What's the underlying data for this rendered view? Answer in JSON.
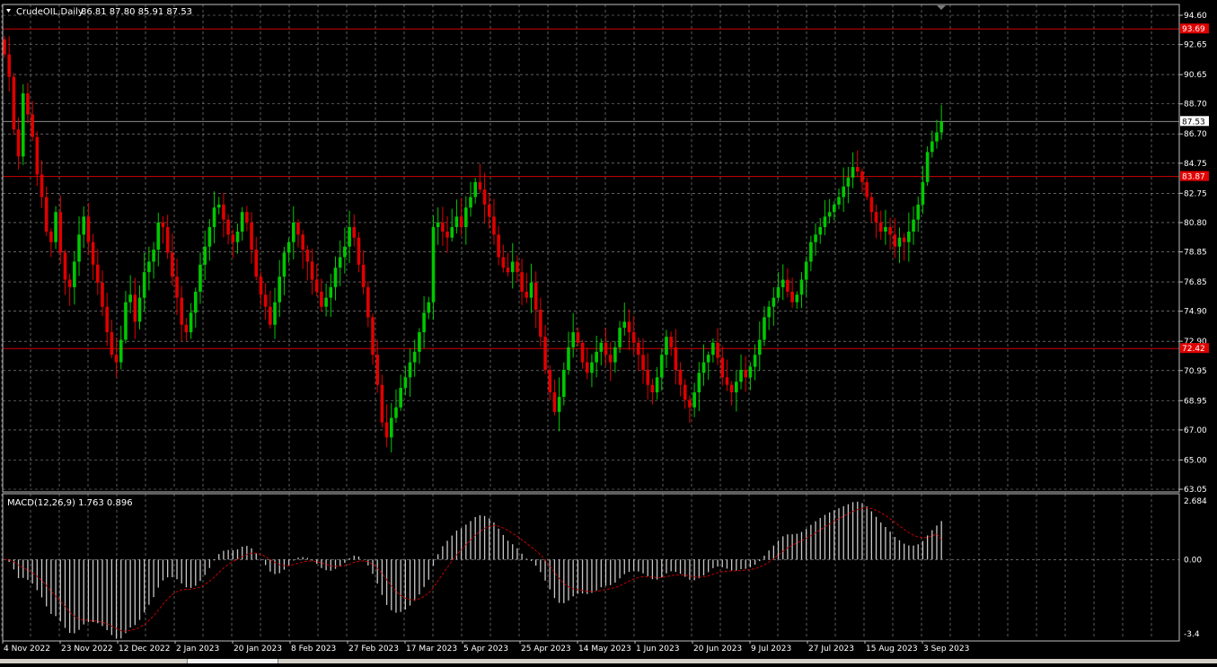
{
  "header": {
    "symbol_title": "CrudeOIL,Daily",
    "ohlc_text": "86.81 87.80 85.91 87.53"
  },
  "indicator": {
    "label": "MACD(12,26,9) 1.763 0.896"
  },
  "colors": {
    "background": "#000000",
    "grid": "#9a9a9a",
    "bull_candle": "#00c800",
    "bear_candle": "#e00000",
    "level_line": "#d00000",
    "level_label_bg": "#e00000",
    "price_line": "#a0a0a0",
    "macd_hist": "#c8c8c8",
    "signal_line": "#c80000",
    "axis_text": "#ffffff"
  },
  "chart_data": [
    {
      "type": "candlestick",
      "price_axis_ticks": [
        "94.60",
        "92.65",
        "90.65",
        "88.70",
        "86.70",
        "84.75",
        "82.75",
        "80.80",
        "78.85",
        "76.85",
        "74.90",
        "72.90",
        "70.95",
        "68.95",
        "67.00",
        "65.00",
        "63.05"
      ],
      "ylim": [
        63.05,
        94.6
      ],
      "date_labels": [
        "4 Nov 2022",
        "23 Nov 2022",
        "12 Dec 2022",
        "2 Jan 2023",
        "20 Jan 2023",
        "8 Feb 2023",
        "27 Feb 2023",
        "17 Mar 2023",
        "5 Apr 2023",
        "25 Apr 2023",
        "14 May 2023",
        "1 Jun 2023",
        "20 Jun 2023",
        "9 Jul 2023",
        "27 Jul 2023",
        "15 Aug 2023",
        "3 Sep 2023"
      ],
      "horizontal_levels": [
        {
          "value": 93.69,
          "label": "93.69"
        },
        {
          "value": 83.87,
          "label": "83.87"
        },
        {
          "value": 72.42,
          "label": "72.42"
        }
      ],
      "current_price": {
        "value": 87.53,
        "label": "87.53"
      },
      "closes": [
        92.0,
        90.5,
        87.0,
        85.2,
        89.4,
        88.0,
        86.5,
        84.0,
        82.5,
        80.2,
        79.5,
        81.5,
        78.8,
        77.0,
        76.5,
        78.2,
        80.0,
        81.2,
        79.5,
        78.0,
        76.8,
        75.2,
        73.5,
        72.0,
        71.5,
        73.0,
        75.5,
        76.0,
        74.2,
        75.8,
        77.5,
        78.2,
        79.0,
        80.8,
        80.5,
        78.8,
        77.2,
        75.8,
        74.0,
        73.5,
        74.8,
        76.2,
        78.0,
        79.2,
        80.5,
        81.8,
        82.0,
        81.0,
        80.0,
        79.5,
        80.2,
        81.5,
        80.8,
        79.0,
        77.2,
        76.0,
        75.2,
        74.0,
        75.5,
        77.2,
        78.8,
        79.5,
        80.8,
        80.0,
        79.0,
        78.2,
        77.0,
        76.2,
        75.2,
        75.8,
        76.5,
        77.8,
        78.5,
        79.2,
        80.5,
        79.8,
        78.0,
        76.5,
        74.5,
        72.0,
        70.0,
        67.5,
        66.5,
        67.8,
        68.5,
        69.8,
        70.5,
        71.5,
        72.2,
        73.5,
        74.8,
        75.5,
        80.5,
        80.8,
        80.2,
        79.8,
        80.5,
        81.2,
        80.5,
        81.8,
        82.5,
        83.5,
        83.0,
        82.0,
        81.2,
        80.0,
        78.5,
        77.8,
        77.5,
        78.2,
        77.5,
        76.2,
        75.8,
        76.8,
        75.0,
        73.2,
        71.0,
        69.5,
        68.2,
        69.2,
        71.0,
        72.5,
        73.5,
        72.8,
        71.5,
        70.8,
        71.5,
        72.2,
        72.8,
        72.0,
        71.5,
        72.5,
        73.8,
        74.2,
        73.5,
        72.8,
        72.0,
        71.0,
        70.0,
        69.5,
        70.5,
        72.0,
        73.2,
        72.5,
        71.0,
        70.0,
        69.0,
        68.5,
        69.5,
        70.8,
        71.5,
        72.0,
        72.8,
        71.8,
        70.5,
        70.0,
        69.5,
        70.2,
        71.0,
        70.5,
        71.2,
        72.0,
        73.0,
        74.5,
        75.2,
        75.8,
        76.5,
        77.0,
        76.2,
        75.5,
        76.0,
        77.0,
        78.2,
        79.5,
        80.0,
        80.5,
        81.2,
        81.5,
        82.0,
        82.5,
        83.2,
        83.8,
        84.5,
        84.2,
        83.5,
        82.5,
        81.5,
        80.8,
        80.2,
        80.5,
        80.0,
        79.2,
        79.8,
        79.5,
        80.2,
        81.0,
        82.0,
        83.5,
        85.5,
        86.2,
        86.8,
        87.53
      ],
      "macd": {
        "ylim": [
          -3.4,
          2.684
        ],
        "tick_labels": [
          "2.684",
          "0.00",
          "-3.4"
        ],
        "main": 1.763,
        "signal": 0.896
      }
    }
  ]
}
